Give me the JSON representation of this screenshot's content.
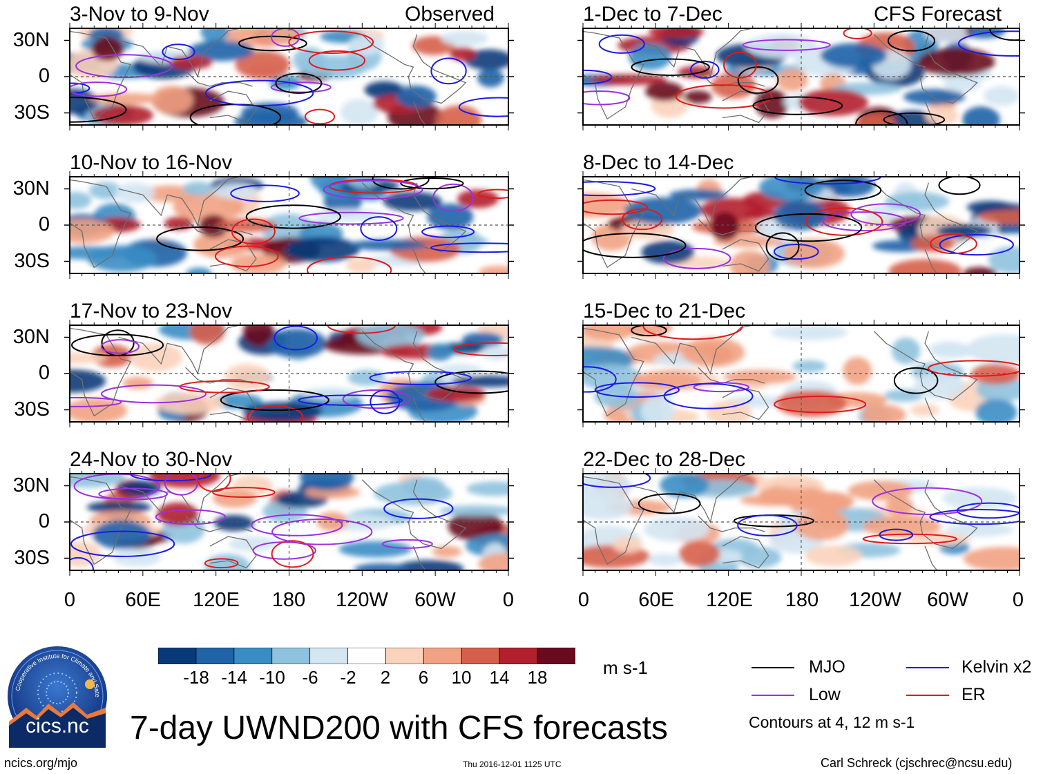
{
  "title": "7-day UWND200 with CFS forecasts",
  "units": "m s-1",
  "contour_note": "Contours at 4, 12 m s-1",
  "site": "ncics.org/mjo",
  "timestamp": "Thu 2016-12-01 1125 UTC",
  "author": "Carl Schreck (cjschrec@ncsu.edu)",
  "logo": {
    "text": "cics.nc",
    "ring_text": "Cooperative Institute for Climate and Satellites"
  },
  "columns": {
    "left": {
      "label": "Observed"
    },
    "right": {
      "label": "CFS Forecast"
    }
  },
  "panels": [
    {
      "period": "3-Nov to 9-Nov"
    },
    {
      "period": "10-Nov to 16-Nov"
    },
    {
      "period": "17-Nov to 23-Nov"
    },
    {
      "period": "24-Nov to 30-Nov"
    },
    {
      "period": "1-Dec to 7-Dec"
    },
    {
      "period": "8-Dec to 14-Dec"
    },
    {
      "period": "15-Dec to 21-Dec"
    },
    {
      "period": "22-Dec to 28-Dec"
    }
  ],
  "lat_ticks": [
    "30N",
    "0",
    "30S"
  ],
  "lon_ticks": [
    "0",
    "60E",
    "120E",
    "180",
    "120W",
    "60W",
    "0"
  ],
  "colorbar": {
    "labels": [
      "-18",
      "-14",
      "-10",
      "-6",
      "-2",
      "2",
      "6",
      "10",
      "14",
      "18"
    ],
    "colors": [
      "#083a7a",
      "#1f63a8",
      "#3a8dc4",
      "#8fc2de",
      "#d3e6f2",
      "#ffffff",
      "#fbd3bd",
      "#f1a283",
      "#d65f4b",
      "#b21f2d",
      "#6a0a1e"
    ]
  },
  "legend": [
    {
      "label": "MJO",
      "color": "#000000"
    },
    {
      "label": "Kelvin x2",
      "color": "#1a1ae6"
    },
    {
      "label": "Low",
      "color": "#9b30e0"
    },
    {
      "label": "ER",
      "color": "#e01a1a"
    }
  ],
  "chart_data": {
    "type": "heatmap",
    "variable": "200-hPa zonal wind anomaly (7-day mean)",
    "units": "m s-1",
    "x_range": [
      0,
      360
    ],
    "y_range": [
      -40,
      40
    ],
    "x_ticks": [
      "0",
      "60E",
      "120E",
      "180",
      "120W",
      "60W",
      "0"
    ],
    "y_ticks": [
      "30N",
      "0",
      "30S"
    ],
    "levels": [
      -18,
      -14,
      -10,
      -6,
      -2,
      2,
      6,
      10,
      14,
      18
    ],
    "contour_levels": [
      4,
      12
    ],
    "contour_series": [
      "MJO",
      "Kelvin x2",
      "Low",
      "ER"
    ]
  }
}
